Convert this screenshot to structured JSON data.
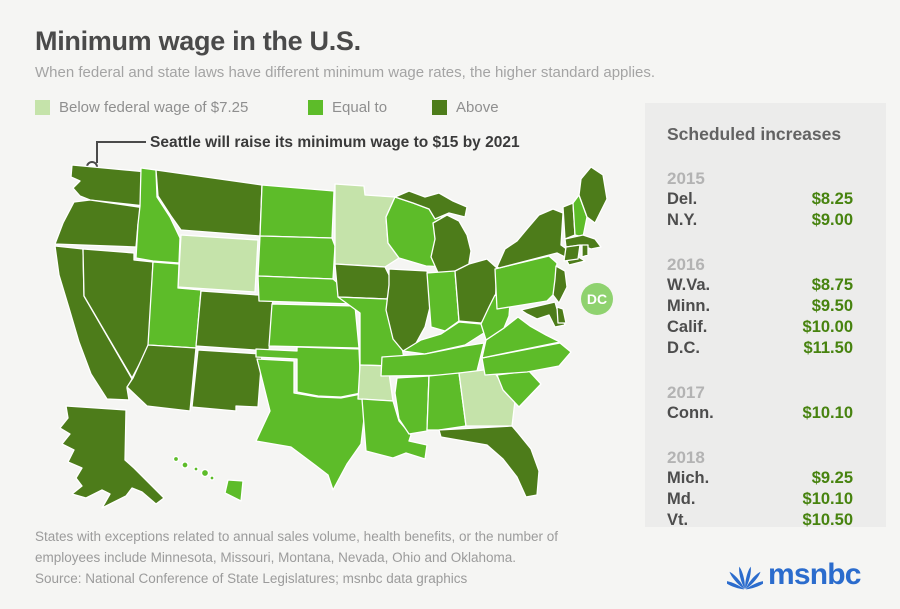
{
  "header": {
    "title": "Minimum wage in the U.S.",
    "subtitle": "When federal and state laws have different minimum wage rates, the higher standard applies."
  },
  "legend": {
    "items": [
      {
        "label": "Below federal wage of $7.25",
        "color": "#c5e3aa"
      },
      {
        "label": "Equal to",
        "color": "#5dbc29"
      },
      {
        "label": "Above",
        "color": "#4d7c1a"
      }
    ]
  },
  "annotation": {
    "text": "Seattle will raise its minimum wage to $15 by 2021"
  },
  "chart_data": {
    "type": "choropleth-map",
    "title": "Minimum wage in the U.S.",
    "legend_position": "top",
    "categories": {
      "below": "Below federal wage of $7.25",
      "equal": "Equal to",
      "above": "Above"
    },
    "category_colors": {
      "below": "#c5e3aa",
      "equal": "#5dbc29",
      "above": "#4d7c1a"
    },
    "states": {
      "WA": "above",
      "OR": "above",
      "CA": "above",
      "NV": "above",
      "ID": "equal",
      "MT": "above",
      "WY": "below",
      "UT": "equal",
      "CO": "above",
      "AZ": "above",
      "NM": "above",
      "ND": "equal",
      "SD": "equal",
      "NE": "equal",
      "KS": "equal",
      "OK": "equal",
      "TX": "equal",
      "MN": "below",
      "IA": "above",
      "MO": "equal",
      "AR": "below",
      "LA": "equal",
      "WI": "equal",
      "IL": "above",
      "MI": "above",
      "MI_UP": "above",
      "IN": "equal",
      "OH": "above",
      "KY": "equal",
      "TN": "equal",
      "MS": "equal",
      "AL": "equal",
      "GA": "below",
      "FL": "above",
      "SC": "equal",
      "NC": "equal",
      "VA": "equal",
      "WV": "equal",
      "PA": "equal",
      "MD": "above",
      "DE": "above",
      "NJ": "above",
      "NY": "above",
      "CT": "above",
      "RI": "above",
      "MA": "above",
      "VT": "above",
      "NH": "equal",
      "ME": "above",
      "AK": "above",
      "HI": "equal",
      "DC": "above"
    }
  },
  "map": {
    "dc_label": "DC",
    "dc_badge_color": "#8fd26f"
  },
  "sidebar": {
    "title": "Scheduled increases",
    "groups": [
      {
        "year": "2015",
        "rows": [
          {
            "state": "Del.",
            "value": "$8.25"
          },
          {
            "state": "N.Y.",
            "value": "$9.00"
          }
        ]
      },
      {
        "year": "2016",
        "rows": [
          {
            "state": "W.Va.",
            "value": "$8.75"
          },
          {
            "state": "Minn.",
            "value": "$9.50"
          },
          {
            "state": "Calif.",
            "value": "$10.00"
          },
          {
            "state": "D.C.",
            "value": "$11.50"
          }
        ]
      },
      {
        "year": "2017",
        "rows": [
          {
            "state": "Conn.",
            "value": "$10.10"
          }
        ]
      },
      {
        "year": "2018",
        "rows": [
          {
            "state": "Mich.",
            "value": "$9.25"
          },
          {
            "state": "Md.",
            "value": "$10.10"
          },
          {
            "state": "Vt.",
            "value": "$10.50"
          }
        ]
      }
    ]
  },
  "footnote": "States with exceptions related to annual sales volume, health benefits, or the number of employees include Minnesota, Missouri, Montana, Nevada, Ohio and Oklahoma.",
  "source": "Source: National Conference of State Legislatures; msnbc data graphics",
  "logo": {
    "text": "msnbc",
    "color": "#2b6ccd"
  }
}
